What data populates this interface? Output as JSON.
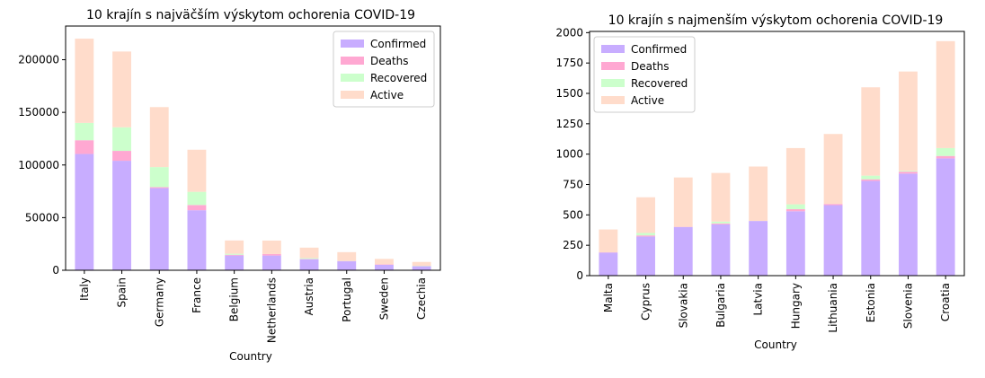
{
  "chart_data": [
    {
      "type": "bar",
      "stacked": true,
      "title": "10 krajín s najväčším výskytom ochorenia COVID-19",
      "xlabel": "Country",
      "ylabel": "",
      "ylim": [
        0,
        232000
      ],
      "yticks": [
        0,
        50000,
        100000,
        150000,
        200000
      ],
      "ytick_labels": [
        "0",
        "50000",
        "100000",
        "150000",
        "200000"
      ],
      "legend_position": "top-right",
      "grid": false,
      "categories": [
        "Italy",
        "Spain",
        "Germany",
        "France",
        "Belgium",
        "Netherlands",
        "Austria",
        "Portugal",
        "Sweden",
        "Czechia"
      ],
      "series": [
        {
          "name": "Confirmed",
          "color": "#c8adff",
          "values": [
            110500,
            104000,
            78000,
            57000,
            14000,
            14000,
            10500,
            8500,
            5200,
            3800
          ]
        },
        {
          "name": "Deaths",
          "color": "#ffa8d2",
          "values": [
            13000,
            9400,
            1000,
            5000,
            700,
            1400,
            300,
            300,
            400,
            100
          ]
        },
        {
          "name": "Recovered",
          "color": "#ccffcc",
          "values": [
            16500,
            22400,
            19000,
            12500,
            1000,
            0,
            800,
            200,
            0,
            300
          ]
        },
        {
          "name": "Active",
          "color": "#ffdccb",
          "values": [
            80000,
            72000,
            57000,
            40000,
            12600,
            12800,
            9900,
            8200,
            5200,
            3700
          ]
        }
      ]
    },
    {
      "type": "bar",
      "stacked": true,
      "title": "10 krajín s najmenším výskytom ochorenia COVID-19",
      "xlabel": "Country",
      "ylabel": "",
      "ylim": [
        0,
        2010
      ],
      "yticks": [
        0,
        250,
        500,
        750,
        1000,
        1250,
        1500,
        1750,
        2000
      ],
      "ytick_labels": [
        "0",
        "250",
        "500",
        "750",
        "1000",
        "1250",
        "1500",
        "1750",
        "2000"
      ],
      "legend_position": "top-left",
      "grid": false,
      "categories": [
        "Malta",
        "Cyprus",
        "Slovakia",
        "Bulgaria",
        "Latvia",
        "Hungary",
        "Lithuania",
        "Estonia",
        "Slovenia",
        "Croatia"
      ],
      "series": [
        {
          "name": "Confirmed",
          "color": "#c8adff",
          "values": [
            190,
            322,
            400,
            422,
            450,
            530,
            580,
            780,
            840,
            965
          ]
        },
        {
          "name": "Deaths",
          "color": "#ffa8d2",
          "values": [
            2,
            9,
            2,
            8,
            0,
            17,
            10,
            13,
            16,
            20
          ]
        },
        {
          "name": "Recovered",
          "color": "#ccffcc",
          "values": [
            0,
            20,
            0,
            15,
            0,
            40,
            0,
            30,
            7,
            65
          ]
        },
        {
          "name": "Active",
          "color": "#ffdccb",
          "values": [
            188,
            294,
            406,
            400,
            448,
            463,
            576,
            727,
            817,
            880
          ]
        }
      ]
    }
  ]
}
